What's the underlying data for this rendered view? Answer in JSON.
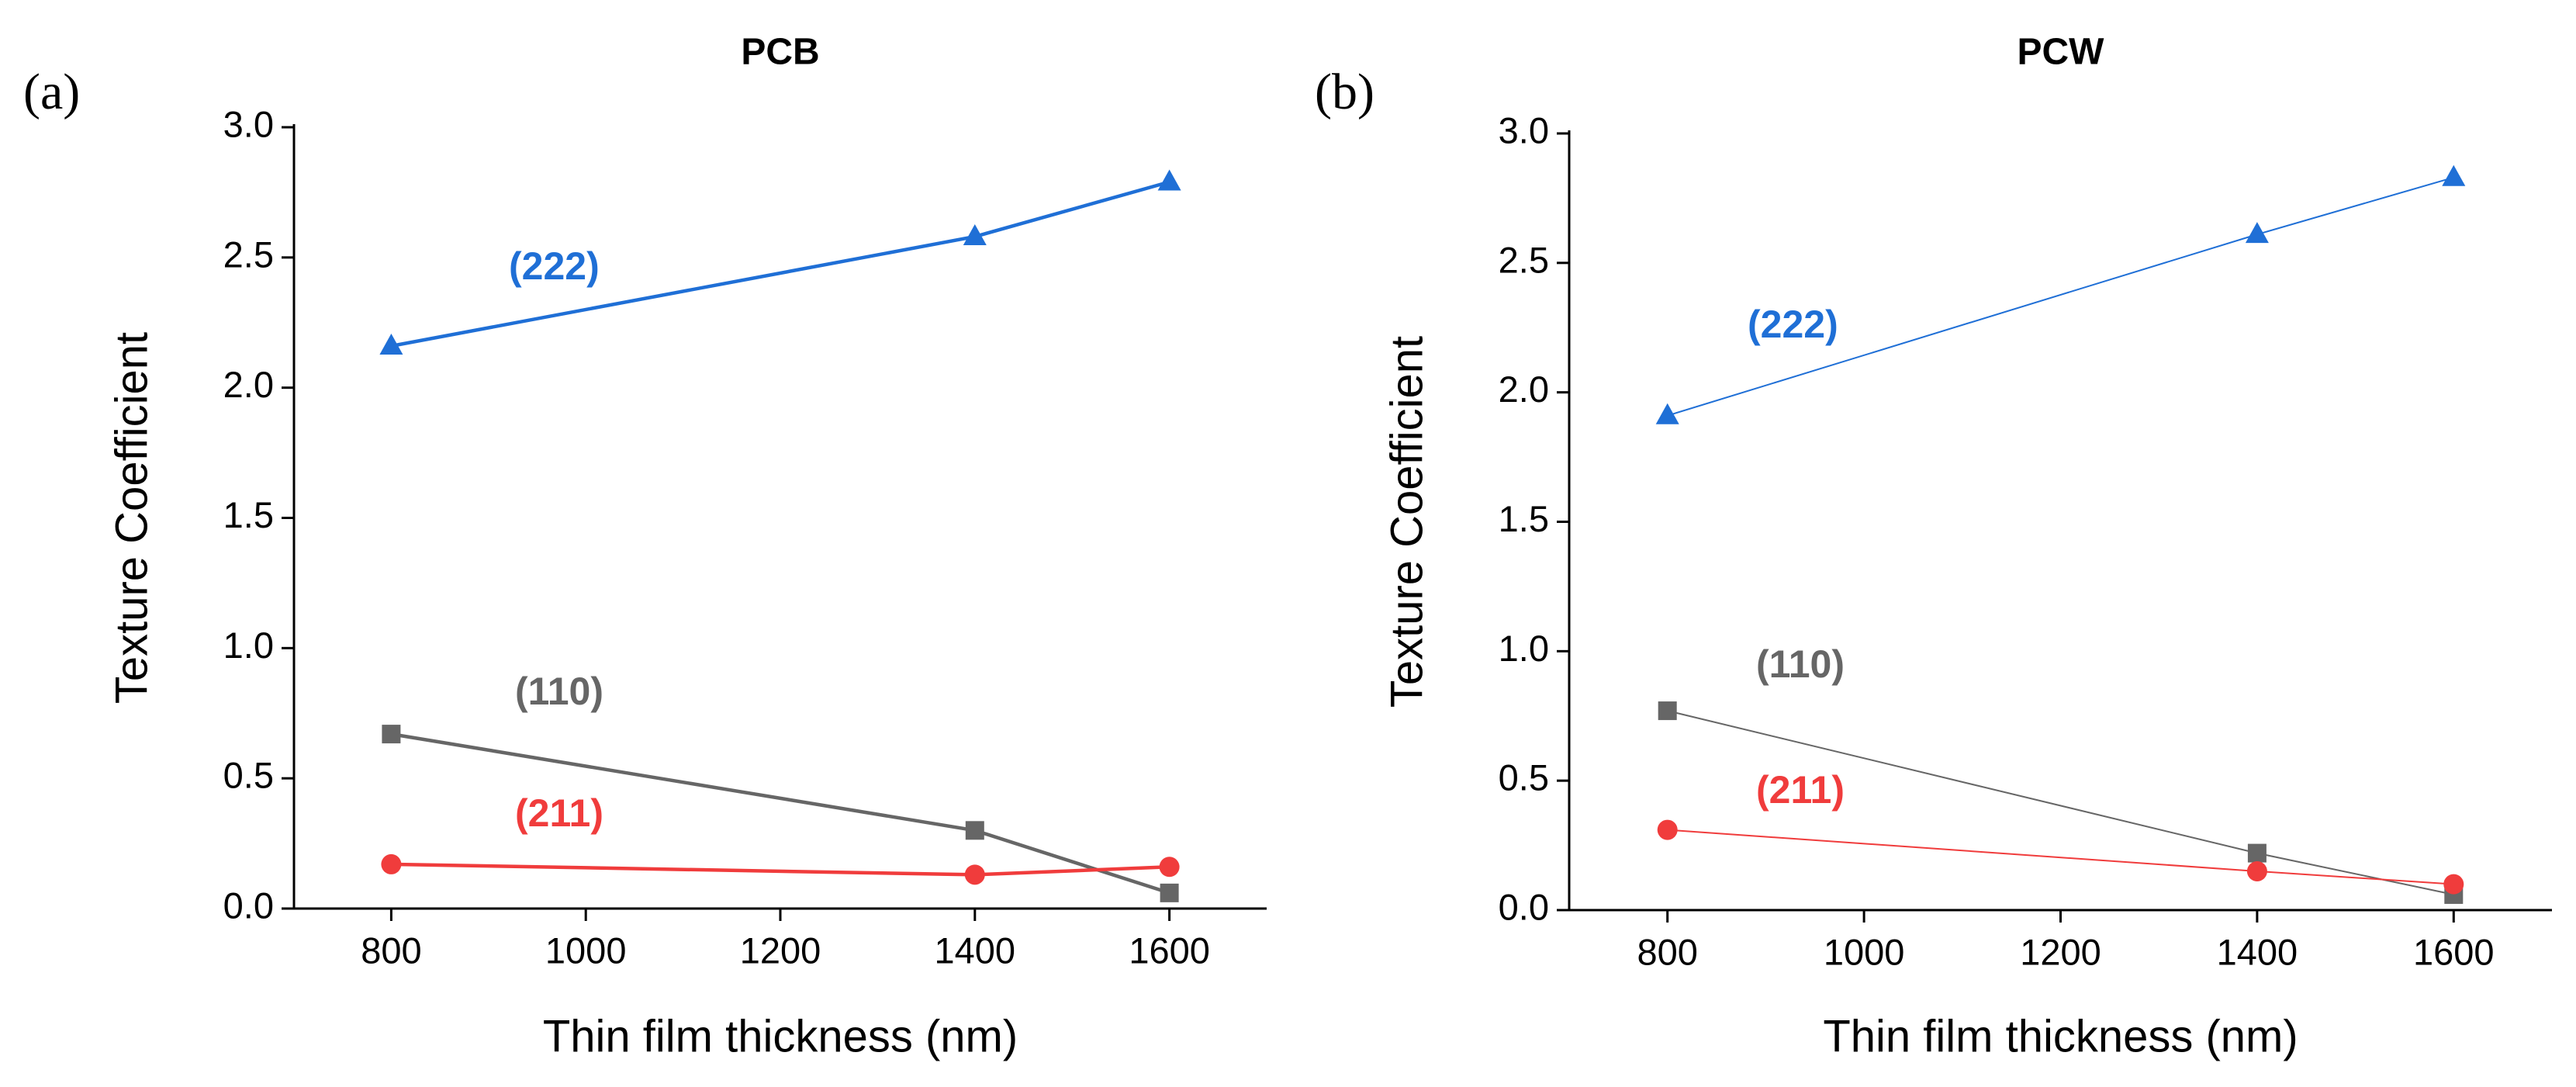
{
  "chart_data": [
    {
      "type": "line",
      "panel_label": "(a)",
      "title": "PCB",
      "x_label": "Thin film thickness (nm)",
      "y_label": "Texture Coefficient",
      "x": [
        800,
        1400,
        1600
      ],
      "xlim": [
        700,
        1700
      ],
      "xticks": [
        800,
        1000,
        1200,
        1400,
        1600
      ],
      "ylim": [
        0,
        3
      ],
      "yticks": [
        {
          "value": 0,
          "label": "0.0"
        },
        0.5,
        {
          "value": 1,
          "label": "1.0"
        },
        1.5,
        {
          "value": 2,
          "label": "2.0"
        },
        2.5,
        {
          "value": 3,
          "label": "3.0"
        }
      ],
      "series": [
        {
          "name": "(222)",
          "color": "#1f6fd6",
          "marker": "triangle",
          "values": [
            2.16,
            2.58,
            2.79
          ]
        },
        {
          "name": "(110)",
          "color": "#666666",
          "marker": "square",
          "values": [
            0.67,
            0.3,
            0.06
          ]
        },
        {
          "name": "(211)",
          "color": "#f03c3c",
          "marker": "circle",
          "values": [
            0.17,
            0.13,
            0.16
          ]
        }
      ]
    },
    {
      "type": "line",
      "panel_label": "(b)",
      "title": "PCW",
      "x_label": "Thin film thickness (nm)",
      "y_label": "Texture Coefficient",
      "x": [
        800,
        1400,
        1600
      ],
      "xlim": [
        700,
        1700
      ],
      "xticks": [
        800,
        1000,
        1200,
        1400,
        1600
      ],
      "ylim": [
        0,
        3
      ],
      "yticks": [
        {
          "value": 0,
          "label": "0.0"
        },
        0.5,
        {
          "value": 1,
          "label": "1.0"
        },
        1.5,
        {
          "value": 2,
          "label": "2.0"
        },
        2.5,
        {
          "value": 3,
          "label": "3.0"
        }
      ],
      "series": [
        {
          "name": "(222)",
          "color": "#1f6fd6",
          "marker": "triangle",
          "values": [
            1.91,
            2.61,
            2.83
          ]
        },
        {
          "name": "(110)",
          "color": "#666666",
          "marker": "square",
          "values": [
            0.77,
            0.22,
            0.06
          ]
        },
        {
          "name": "(211)",
          "color": "#f03c3c",
          "marker": "circle",
          "values": [
            0.31,
            0.15,
            0.1
          ]
        }
      ]
    }
  ]
}
